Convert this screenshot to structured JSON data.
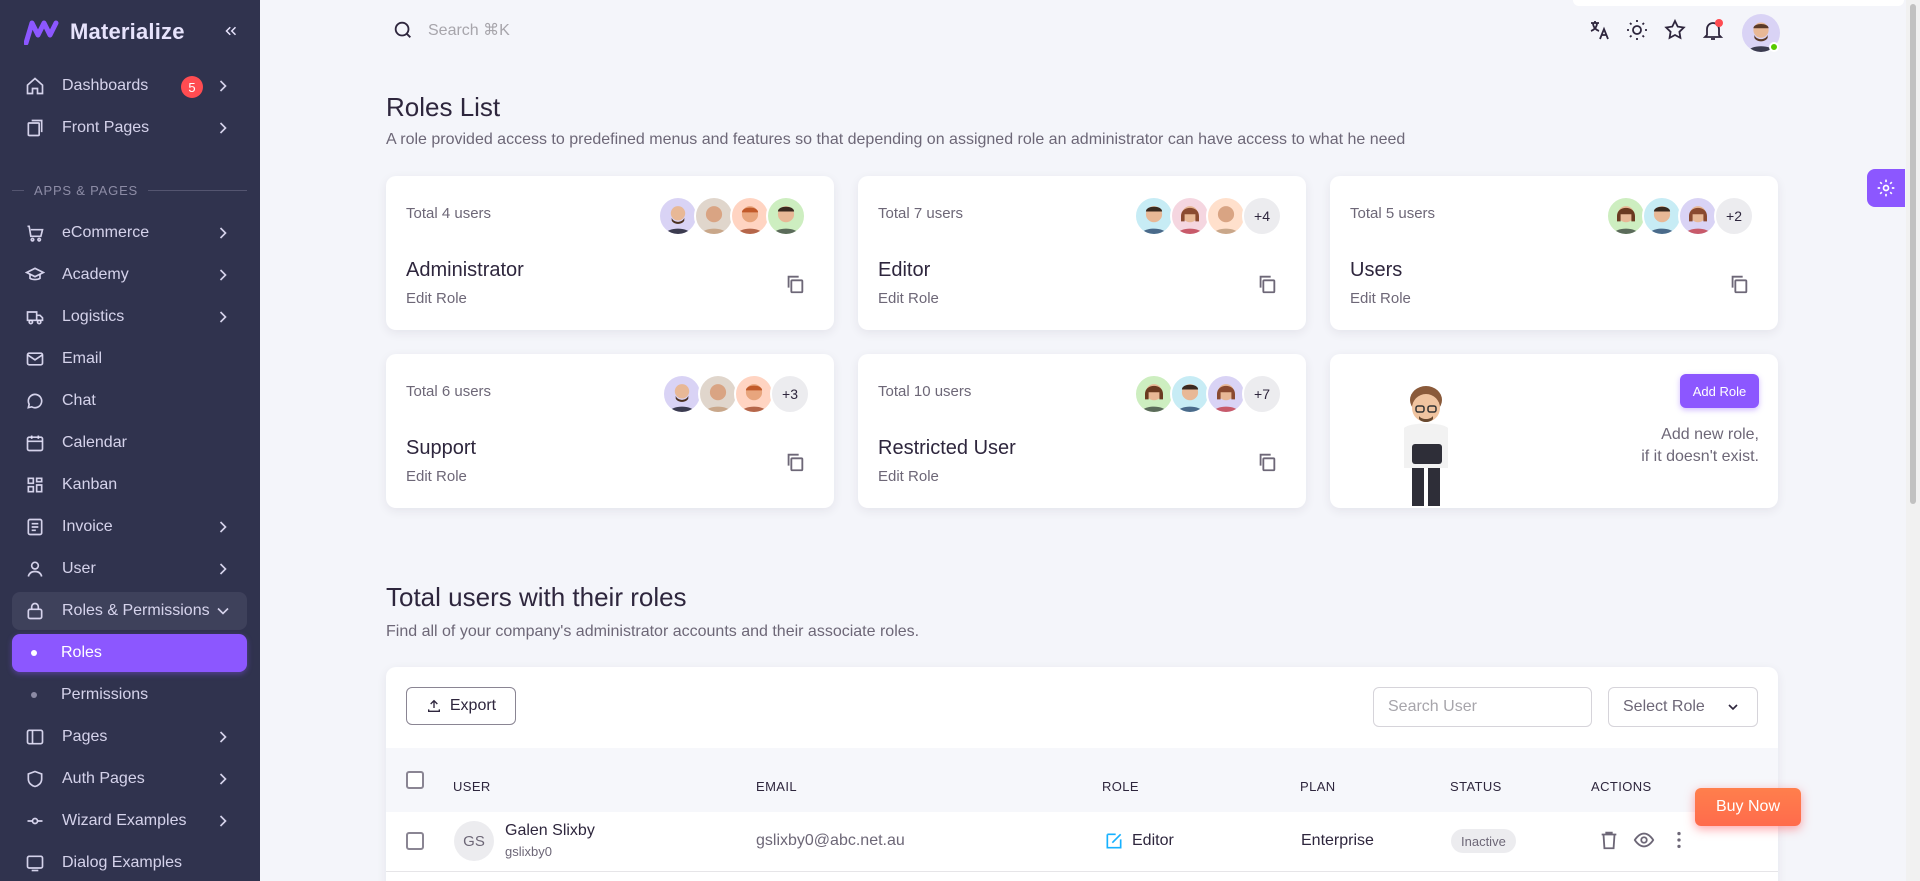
{
  "brand": {
    "name": "Materialize"
  },
  "sidebar": {
    "items": [
      {
        "label": "Dashboards",
        "badge": "5",
        "icon": "home-icon"
      },
      {
        "label": "Front Pages",
        "icon": "pages-icon"
      },
      {
        "label": "eCommerce",
        "icon": "cart-icon"
      },
      {
        "label": "Academy",
        "icon": "graduation-icon"
      },
      {
        "label": "Logistics",
        "icon": "truck-icon"
      },
      {
        "label": "Email",
        "icon": "mail-icon"
      },
      {
        "label": "Chat",
        "icon": "chat-icon"
      },
      {
        "label": "Calendar",
        "icon": "calendar-icon"
      },
      {
        "label": "Kanban",
        "icon": "kanban-icon"
      },
      {
        "label": "Invoice",
        "icon": "invoice-icon"
      },
      {
        "label": "User",
        "icon": "user-icon"
      },
      {
        "label": "Roles & Permissions",
        "icon": "lock-icon"
      },
      {
        "label": "Roles"
      },
      {
        "label": "Permissions"
      },
      {
        "label": "Pages",
        "icon": "layout-icon"
      },
      {
        "label": "Auth Pages",
        "icon": "shield-icon"
      },
      {
        "label": "Wizard Examples",
        "icon": "wizard-icon"
      },
      {
        "label": "Dialog Examples",
        "icon": "dialog-icon"
      }
    ],
    "section": "APPS & PAGES"
  },
  "header": {
    "search_placeholder": "Search ⌘K"
  },
  "page": {
    "title": "Roles List",
    "subtitle": "A role provided access to predefined menus and features so that depending on assigned role an administrator can have access to what he need"
  },
  "roles": [
    {
      "total": "Total 4 users",
      "name": "Administrator",
      "edit": "Edit Role",
      "more": ""
    },
    {
      "total": "Total 7 users",
      "name": "Editor",
      "edit": "Edit Role",
      "more": "+4"
    },
    {
      "total": "Total 5 users",
      "name": "Users",
      "edit": "Edit Role",
      "more": "+2"
    },
    {
      "total": "Total 6 users",
      "name": "Support",
      "edit": "Edit Role",
      "more": "+3"
    },
    {
      "total": "Total 10 users",
      "name": "Restricted User",
      "edit": "Edit Role",
      "more": "+7"
    }
  ],
  "add_role": {
    "button": "Add Role",
    "line1": "Add new role,",
    "line2": "if it doesn't exist."
  },
  "users_section": {
    "title": "Total users with their roles",
    "subtitle": "Find all of your company's administrator accounts and their associate roles."
  },
  "table": {
    "export_label": "Export",
    "search_placeholder": "Search User",
    "select_role": "Select Role",
    "headers": {
      "user": "USER",
      "email": "EMAIL",
      "role": "ROLE",
      "plan": "PLAN",
      "status": "STATUS",
      "actions": "ACTIONS"
    },
    "rows": [
      {
        "initials": "GS",
        "name": "Galen Slixby",
        "handle": "gslixby0",
        "email": "gslixby0@abc.net.au",
        "role": "Editor",
        "plan": "Enterprise",
        "status": "Inactive"
      }
    ]
  },
  "buy_now": "Buy Now",
  "colors": {
    "primary": "#8c57ff",
    "sidebar": "#30334e",
    "danger": "#ff4c51",
    "info": "#16b1ff"
  }
}
